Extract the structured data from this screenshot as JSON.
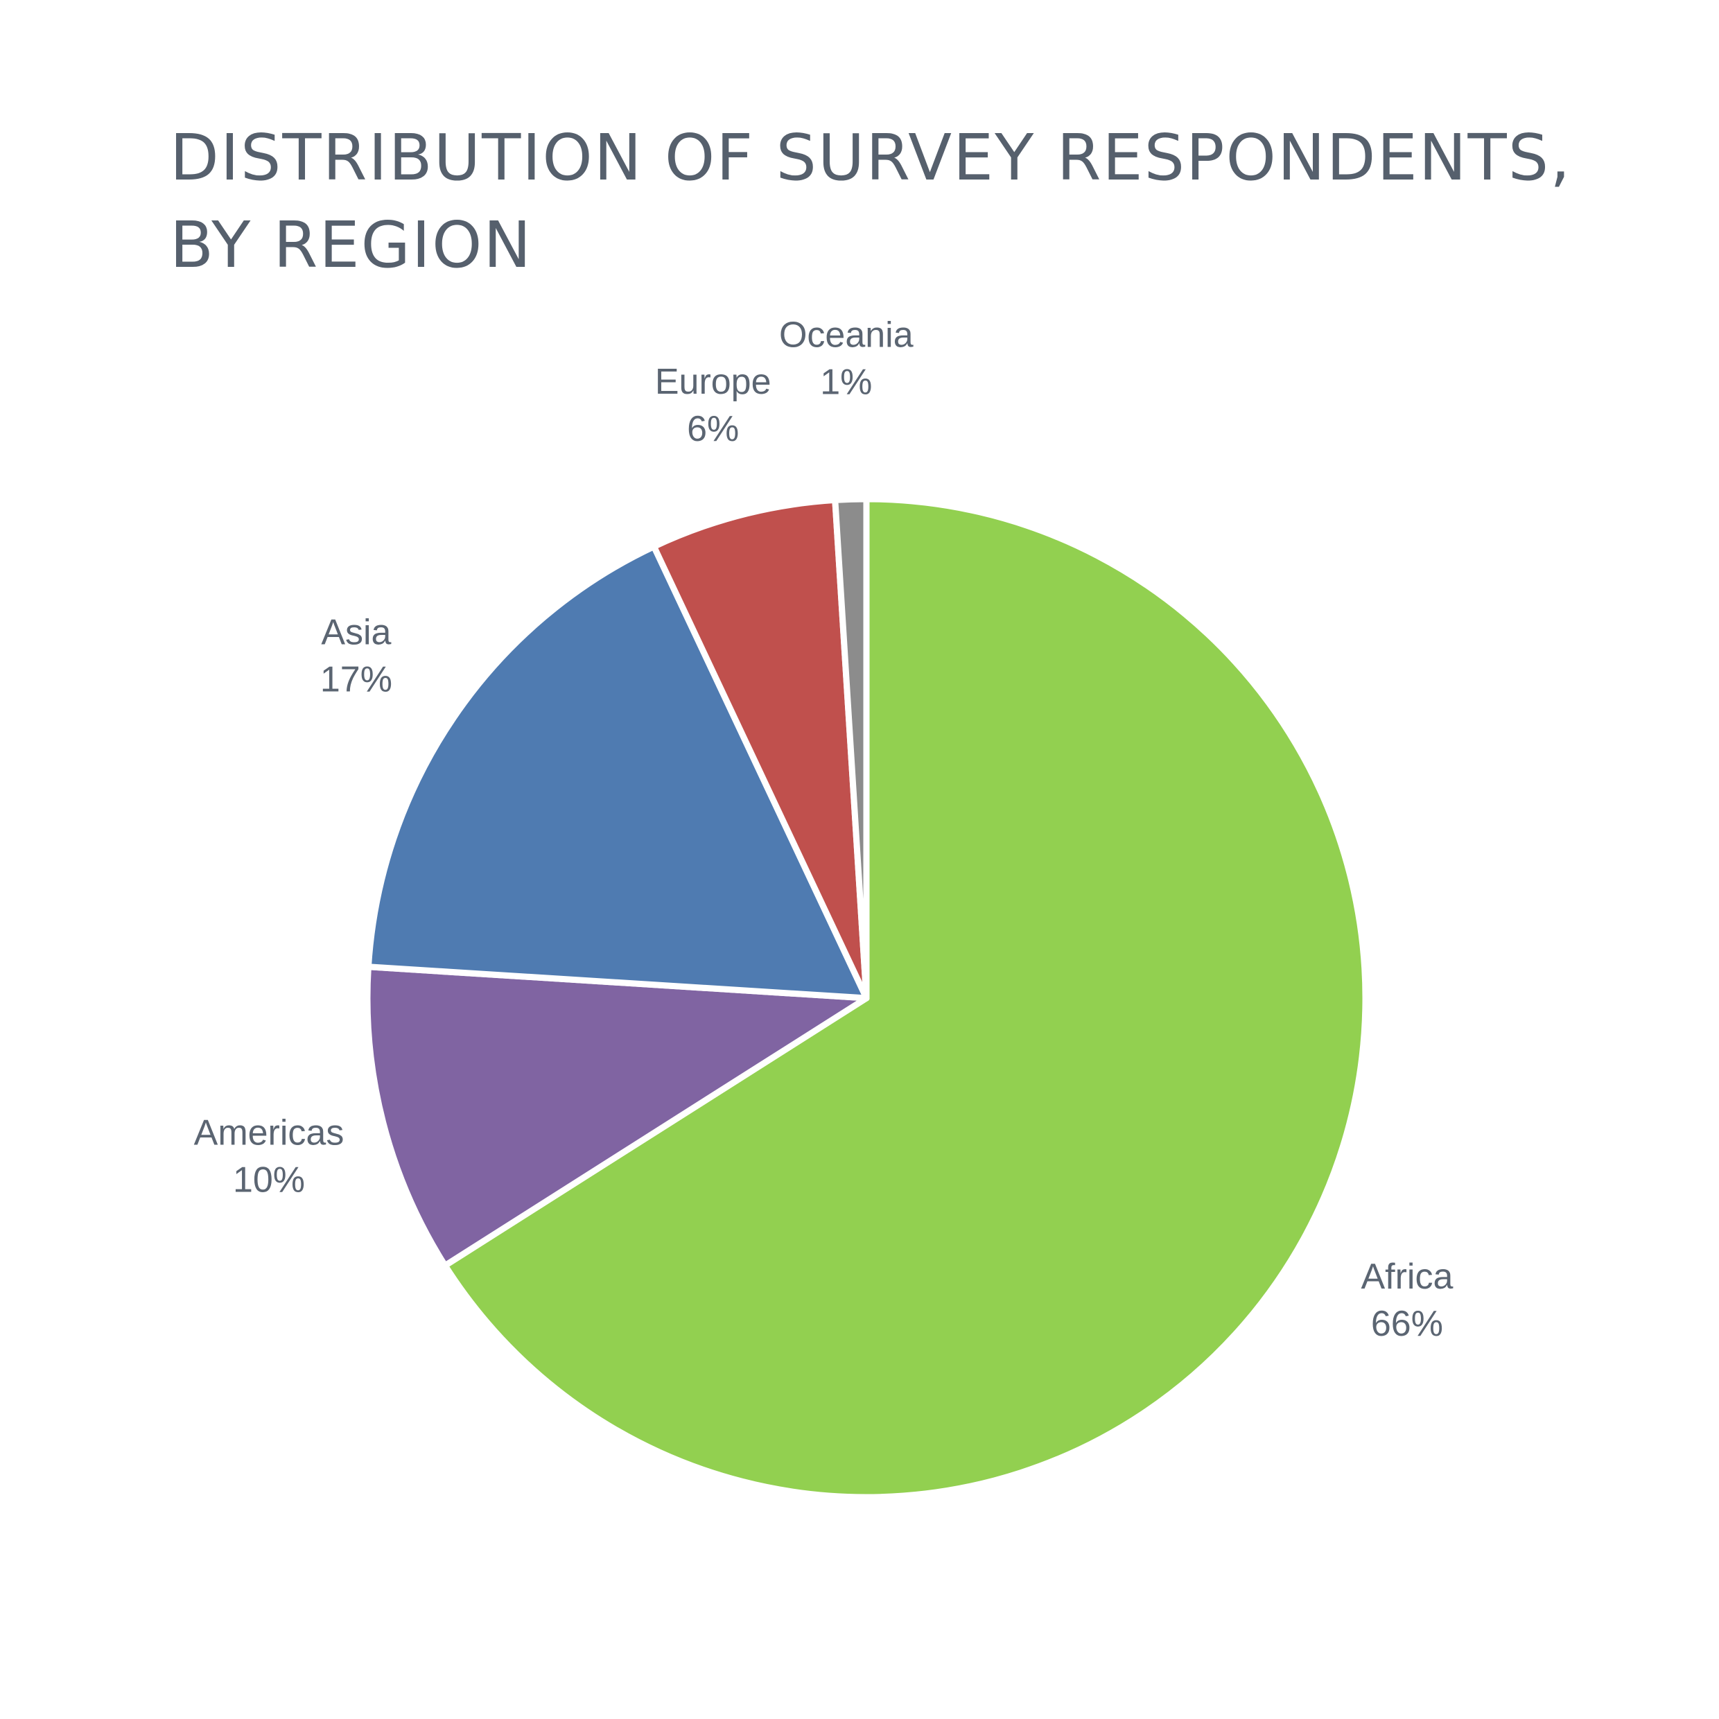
{
  "chart_data": {
    "type": "pie",
    "title": "DISTRIBUTION OF SURVEY RESPONDENTS, BY REGION",
    "start": "12 o'clock",
    "direction": "clockwise",
    "slices": [
      {
        "label": "Africa",
        "value": 66,
        "display": "66%",
        "color": "#92d050"
      },
      {
        "label": "Americas",
        "value": 10,
        "display": "10%",
        "color": "#8064a2"
      },
      {
        "label": "Asia",
        "value": 17,
        "display": "17%",
        "color": "#4f7bb1"
      },
      {
        "label": "Europe",
        "value": 6,
        "display": "6%",
        "color": "#c0504d"
      },
      {
        "label": "Oceania",
        "value": 1,
        "display": "1%",
        "color": "#8c8c8c"
      }
    ],
    "legend": "none",
    "labels": "outside"
  }
}
